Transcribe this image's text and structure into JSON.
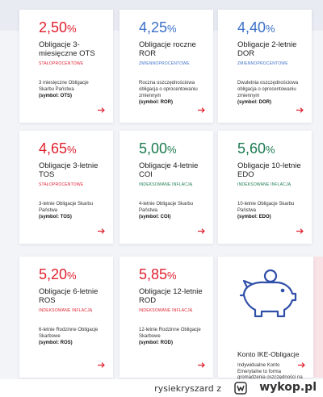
{
  "cards": [
    {
      "rate": "2,50",
      "pct": "%",
      "rate_color": "red",
      "title": "Obligacje 3-miesięczne OTS",
      "type": "STAŁOPROCENTOWE",
      "type_color": "red",
      "desc": "3 miesięczne Obligacje Skarbu Państwa",
      "symbol": "(symbol: OTS)"
    },
    {
      "rate": "4,25",
      "pct": "%",
      "rate_color": "blue",
      "title": "Obligacje roczne ROR",
      "type": "ZMIENNOPROCENTOWE",
      "type_color": "blue",
      "desc": "Roczna oszczędnościowa obligacja o oprocentowaniu zmiennym",
      "symbol": "(symbol: ROR)"
    },
    {
      "rate": "4,40",
      "pct": "%",
      "rate_color": "blue",
      "title": "Obligacje 2-letnie DOR",
      "type": "ZMIENNOPROCENTOWE",
      "type_color": "blue",
      "desc": "Dwuletnia oszczędnościowa obligacja o oprocentowaniu zmiennym",
      "symbol": "(symbol: DOR)"
    },
    {
      "rate": "4,65",
      "pct": "%",
      "rate_color": "red",
      "title": "Obligacje 3-letnie TOS",
      "type": "STAŁOPROCENTOWE",
      "type_color": "red",
      "desc": "3-letnie Obligacje Skarbu Państwa",
      "symbol": "(symbol: TOS)"
    },
    {
      "rate": "5,00",
      "pct": "%",
      "rate_color": "green",
      "title": "Obligacje 4-letnie COI",
      "type": "INDEKSOWANE INFLACJĄ",
      "type_color": "green",
      "desc": "4-letnie Obligacje Skarbu Państwa",
      "symbol": "(symbol: COI)"
    },
    {
      "rate": "5,60",
      "pct": "%",
      "rate_color": "green",
      "title": "Obligacje 10-letnie EDO",
      "type": "INDEKSOWANE INFLACJĄ",
      "type_color": "green",
      "desc": "10-letnie Obligacje Skarbu Państwa",
      "symbol": "(symbol: EDO)"
    },
    {
      "rate": "5,20",
      "pct": "%",
      "rate_color": "red",
      "title": "Obligacje 6-letnie ROS",
      "type": "INDEKSOWANE INFLACJĄ",
      "type_color": "red",
      "desc": "6-letnie Rodzinne Obligacje Skarbowe",
      "symbol": "(symbol: ROS)"
    },
    {
      "rate": "5,85",
      "pct": "%",
      "rate_color": "red",
      "title": "Obligacje 12-letnie ROD",
      "type": "INDEKSOWANE INFLACJĄ",
      "type_color": "red",
      "desc": "12-letnie Rodzinne Obligacje Skarbowe",
      "symbol": "(symbol: ROD)"
    }
  ],
  "ike": {
    "title": "Konto IKE-Obligacje",
    "desc": "Indywidualne Konto Emerytalne to forma gromadzenia oszczędności na emeryturę.",
    "icon": "piggy-bank-icon"
  },
  "arrow_icon": "arrow-right-icon",
  "footer": {
    "user": "rysiekryszard",
    "separator": "z",
    "logo": "wykop.pl",
    "logo_icon": "wykop-logo-icon"
  },
  "colors": {
    "red": "#e0202e",
    "blue": "#3a6fc8",
    "green": "#1a7a4e"
  }
}
